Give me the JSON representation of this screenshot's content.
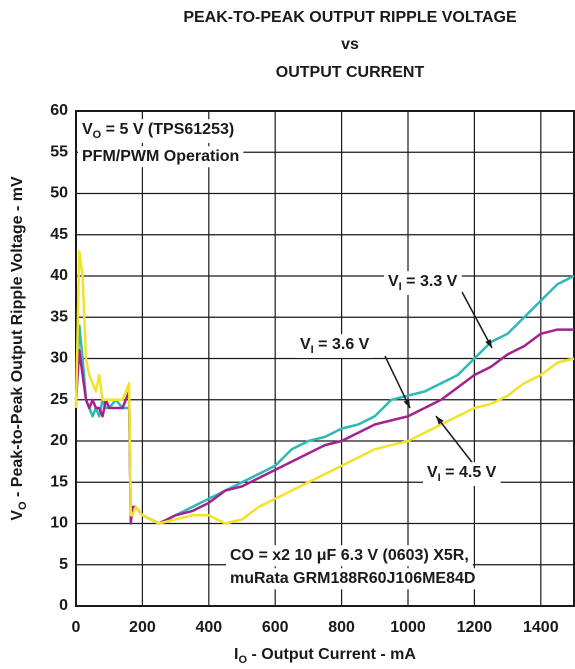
{
  "chart_data": {
    "type": "line",
    "title": [
      "PEAK-TO-PEAK OUTPUT RIPPLE VOLTAGE",
      "vs",
      "OUTPUT CURRENT"
    ],
    "x_label": {
      "text": "I",
      "sub": "O",
      "rest": " - Output Current - mA"
    },
    "y_label": {
      "text": "V",
      "sub": "O",
      "rest": " - Peak-to-Peak Output Ripple Voltage - mV"
    },
    "xlim": [
      0,
      1500
    ],
    "ylim": [
      0,
      60
    ],
    "xticks": [
      0,
      200,
      400,
      600,
      800,
      1000,
      1200,
      1400
    ],
    "yticks": [
      0,
      5,
      10,
      15,
      20,
      25,
      30,
      35,
      40,
      45,
      50,
      55,
      60
    ],
    "grid": true,
    "x": [
      0,
      10,
      20,
      30,
      40,
      50,
      60,
      70,
      80,
      90,
      100,
      120,
      140,
      160,
      165,
      170,
      180,
      200,
      250,
      300,
      350,
      400,
      450,
      500,
      550,
      600,
      650,
      700,
      750,
      800,
      850,
      900,
      950,
      1000,
      1050,
      1100,
      1150,
      1200,
      1250,
      1300,
      1350,
      1400,
      1450,
      1500
    ],
    "series": [
      {
        "name": {
          "text": "V",
          "sub": "I",
          "rest": " = 3.3 V"
        },
        "color": "#2fb8b4",
        "values": [
          24,
          34,
          30,
          25,
          24,
          23,
          24,
          23,
          25,
          24,
          24,
          25,
          24,
          24,
          11,
          12,
          12,
          11,
          10,
          11,
          12,
          13,
          14,
          15,
          16,
          17,
          19,
          20,
          20.5,
          21.5,
          22,
          23,
          25,
          25.5,
          26,
          27,
          28,
          30,
          32,
          33,
          35,
          37,
          39,
          40
        ]
      },
      {
        "name": {
          "text": "V",
          "sub": "I",
          "rest": " = 3.6 V"
        },
        "color": "#a3238e",
        "values": [
          25,
          31,
          28,
          25,
          24,
          25,
          24,
          24,
          23,
          25,
          24,
          24,
          24,
          26,
          10,
          12,
          12,
          11,
          10,
          11,
          11.5,
          12.5,
          14,
          14.5,
          15.5,
          16.5,
          17.5,
          18.5,
          19.5,
          20,
          21,
          22,
          22.5,
          23,
          24,
          25,
          26.5,
          28,
          29,
          30.5,
          31.5,
          33,
          33.5,
          33.5
        ]
      },
      {
        "name": {
          "text": "V",
          "sub": "I",
          "rest": " = 4.5 V"
        },
        "color": "#f2e32a",
        "values": [
          24,
          43,
          40,
          30,
          28,
          27,
          26,
          28,
          25,
          25,
          25,
          25,
          25,
          27,
          11,
          11,
          12,
          11,
          10,
          10.5,
          11,
          11,
          10,
          10.5,
          12,
          13,
          14,
          15,
          16,
          17,
          18,
          19,
          19.5,
          20,
          21,
          22,
          23,
          24,
          24.5,
          25.5,
          27,
          28,
          29.5,
          30
        ]
      }
    ],
    "annotations": [
      [
        {
          "text": "V",
          "sub": "O",
          "rest": " = 5 V (TPS61253)"
        },
        {
          "text": "PFM/PWM Operation"
        }
      ],
      [
        {
          "text": "CO = x2 10 μF 6.3 V (0603) X5R,"
        },
        {
          "text": "muRata GRM188R60J106ME84D"
        }
      ]
    ]
  }
}
